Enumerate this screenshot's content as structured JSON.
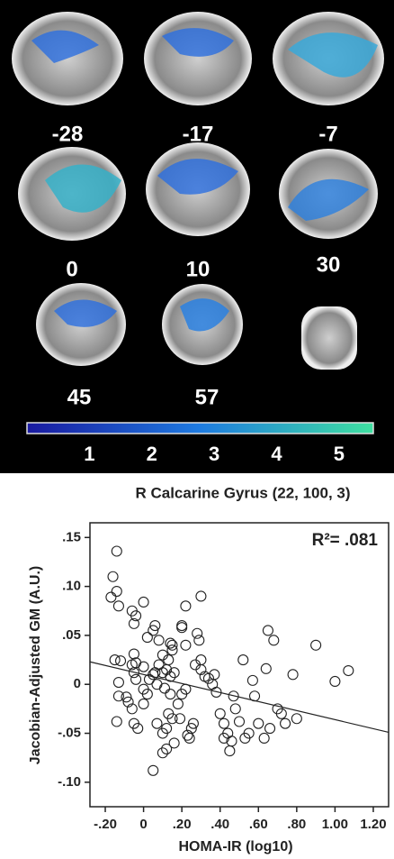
{
  "brain_panel": {
    "slice_labels": [
      "-28",
      "-17",
      "-7",
      "0",
      "10",
      "30",
      "45",
      "57"
    ],
    "colorbar": {
      "lim": [
        0,
        5.55
      ],
      "ticks": [
        1,
        2,
        3,
        4,
        5
      ]
    }
  },
  "chart_data": {
    "type": "scatter",
    "title": "R Calcarine Gyrus (22, 100, 3)",
    "annotation": "R²= .081",
    "x_label": "HOMA-IR (log10)",
    "y_label": "Jacobian-Adjusted GM (A.U.)",
    "x": [
      -0.14,
      -0.16,
      -0.17,
      -0.14,
      -0.13,
      -0.06,
      -0.05,
      -0.04,
      0.0,
      -0.15,
      -0.12,
      -0.13,
      -0.13,
      -0.14,
      -0.09,
      -0.08,
      -0.06,
      -0.05,
      -0.05,
      -0.04,
      -0.04,
      -0.06,
      -0.05,
      -0.03,
      0.0,
      0.0,
      0.0,
      0.02,
      0.05,
      0.06,
      0.08,
      0.05,
      0.06,
      0.08,
      0.1,
      0.1,
      0.11,
      0.12,
      0.13,
      0.14,
      0.15,
      0.14,
      0.15,
      0.16,
      0.1,
      0.1,
      0.12,
      0.13,
      0.14,
      0.15,
      0.16,
      0.18,
      0.19,
      0.2,
      0.2,
      0.22,
      0.22,
      0.23,
      0.24,
      0.25,
      0.26,
      0.27,
      0.28,
      0.29,
      0.3,
      0.3,
      0.3,
      0.32,
      0.34,
      0.36,
      0.37,
      0.38,
      0.4,
      0.42,
      0.42,
      0.44,
      0.45,
      0.46,
      0.47,
      0.48,
      0.5,
      0.52,
      0.53,
      0.55,
      0.57,
      0.58,
      0.6,
      0.63,
      0.64,
      0.65,
      0.68,
      0.66,
      0.7,
      0.72,
      0.74,
      0.78,
      0.8,
      0.9,
      1.0,
      1.07,
      0.05,
      0.07,
      0.02,
      0.03,
      0.12,
      0.2,
      0.22,
      0.07
    ],
    "values": [
      0.136,
      0.11,
      0.089,
      0.095,
      0.08,
      0.075,
      0.062,
      0.07,
      0.084,
      0.025,
      0.024,
      0.002,
      -0.012,
      -0.038,
      -0.013,
      -0.018,
      0.02,
      0.012,
      0.031,
      0.022,
      0.005,
      -0.025,
      -0.04,
      -0.045,
      -0.005,
      -0.02,
      0.018,
      0.048,
      0.055,
      0.06,
      0.045,
      0.01,
      0.012,
      0.02,
      0.012,
      0.03,
      -0.004,
      0.015,
      0.025,
      0.008,
      0.035,
      0.042,
      0.04,
      0.012,
      -0.05,
      -0.07,
      -0.066,
      -0.03,
      -0.01,
      -0.035,
      -0.06,
      -0.02,
      -0.035,
      0.06,
      0.058,
      0.04,
      0.08,
      -0.052,
      -0.055,
      -0.045,
      -0.04,
      0.02,
      0.052,
      0.045,
      0.09,
      0.025,
      0.015,
      0.008,
      0.006,
      0.0,
      0.01,
      -0.008,
      -0.03,
      -0.04,
      -0.055,
      -0.05,
      -0.068,
      -0.058,
      -0.012,
      -0.025,
      -0.038,
      0.025,
      -0.055,
      -0.05,
      0.004,
      -0.012,
      -0.04,
      -0.055,
      0.016,
      0.055,
      0.045,
      -0.045,
      -0.025,
      -0.03,
      -0.04,
      0.01,
      -0.035,
      0.04,
      0.003,
      0.014,
      -0.088,
      -0.04,
      -0.01,
      0.005,
      -0.045,
      -0.01,
      -0.005,
      0.0
    ],
    "fit": {
      "x": [
        -0.28,
        1.28
      ],
      "y": [
        0.023,
        -0.049
      ]
    },
    "xlim": [
      -0.28,
      1.28
    ],
    "ylim": [
      -0.125,
      0.165
    ],
    "xticks": [
      {
        "value": -0.2,
        "label": "-.20"
      },
      0,
      {
        "value": 0.2,
        "label": ".20"
      },
      {
        "value": 0.4,
        "label": ".40"
      },
      {
        "value": 0.6,
        "label": ".60"
      },
      {
        "value": 0.8,
        "label": ".80"
      },
      {
        "value": 1.0,
        "label": "1.00"
      },
      {
        "value": 1.2,
        "label": "1.20"
      }
    ],
    "yticks": [
      {
        "value": 0.15,
        "label": ".15"
      },
      {
        "value": 0.1,
        "label": ".10"
      },
      {
        "value": 0.05,
        "label": ".05"
      },
      0,
      {
        "value": -0.05,
        "label": "-.05"
      },
      {
        "value": -0.1,
        "label": "-.10"
      }
    ]
  }
}
